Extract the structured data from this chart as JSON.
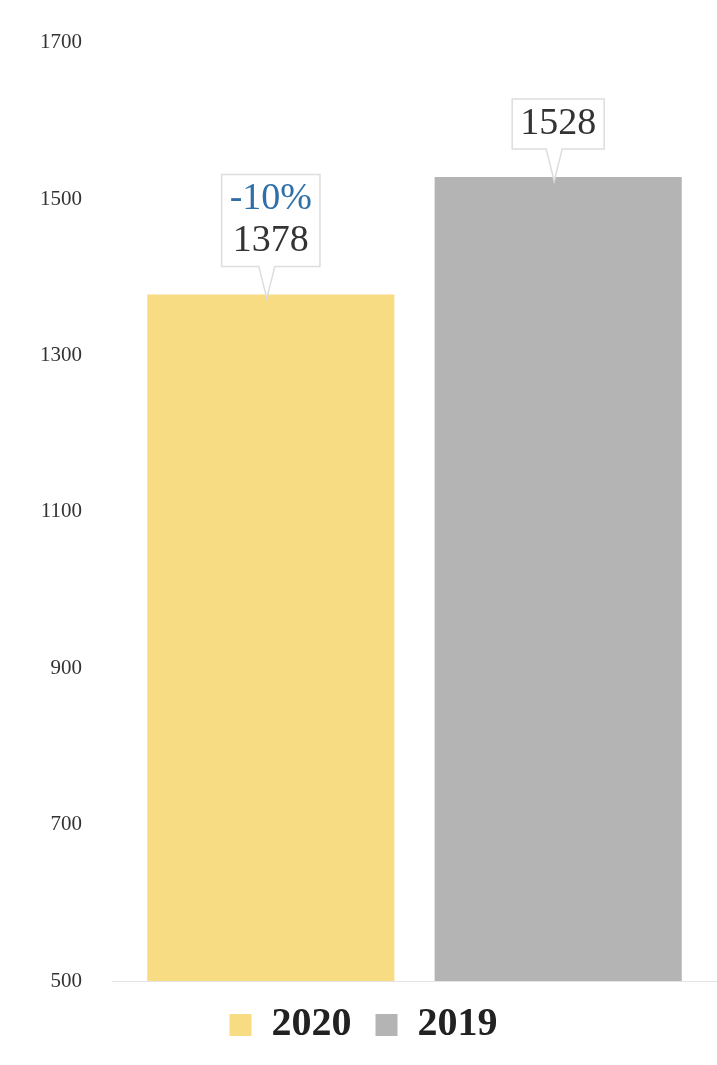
{
  "chart_data": {
    "type": "bar",
    "categories": [
      null
    ],
    "series": [
      {
        "name": "2020",
        "color": "#f8dc84",
        "values": [
          1378
        ]
      },
      {
        "name": "2019",
        "color": "#b4b4b4",
        "values": [
          1528
        ]
      }
    ],
    "ylim": [
      500,
      1700
    ],
    "yticks": [
      500,
      700,
      900,
      1100,
      1300,
      1500,
      1700
    ],
    "grid": false,
    "legend": "bottom",
    "data_labels": true,
    "annotations": [
      "-10%"
    ]
  }
}
